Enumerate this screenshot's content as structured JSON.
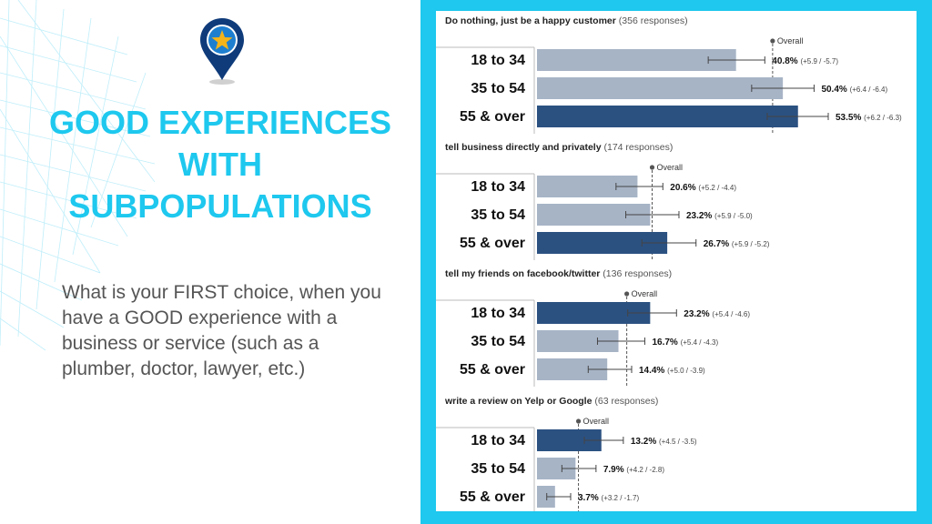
{
  "page": {
    "title": "GOOD EXPERIENCES WITH SUBPOPULATIONS",
    "question": "What is your FIRST choice, when you have a GOOD experience with a business or service (such as a plumber, doctor, lawyer, etc.)",
    "accent_color": "#1ec8ee",
    "logo_icon": "map-pin-star-icon"
  },
  "chart_data": [
    {
      "type": "bar",
      "title": "Do nothing, just be a happy customer",
      "responses": "(356 responses)",
      "overall_label": "Overall",
      "overall": 48.3,
      "categories": [
        "18 to 34",
        "35 to 54",
        "55 & over"
      ],
      "values": [
        40.8,
        50.4,
        53.5
      ],
      "errors": [
        "(+5.9 / -5.7)",
        "(+6.4 / -6.4)",
        "(+6.2 / -6.3)"
      ],
      "err_plus": [
        5.9,
        6.4,
        6.2
      ],
      "err_minus": [
        5.7,
        6.4,
        6.3
      ],
      "highlight": [
        false,
        false,
        true
      ]
    },
    {
      "type": "bar",
      "title": "tell business directly and privately",
      "responses": "(174 responses)",
      "overall_label": "Overall",
      "overall": 23.6,
      "categories": [
        "18 to 34",
        "35 to 54",
        "55 & over"
      ],
      "values": [
        20.6,
        23.2,
        26.7
      ],
      "errors": [
        "(+5.2 / -4.4)",
        "(+5.9 / -5.0)",
        "(+5.9 / -5.2)"
      ],
      "err_plus": [
        5.2,
        5.9,
        5.9
      ],
      "err_minus": [
        4.4,
        5.0,
        5.2
      ],
      "highlight": [
        false,
        false,
        true
      ]
    },
    {
      "type": "bar",
      "title": "tell my friends on facebook/twitter",
      "responses": "(136 responses)",
      "overall_label": "Overall",
      "overall": 18.4,
      "categories": [
        "18 to 34",
        "35 to 54",
        "55 & over"
      ],
      "values": [
        23.2,
        16.7,
        14.4
      ],
      "errors": [
        "(+5.4 / -4.6)",
        "(+5.4 / -4.3)",
        "(+5.0 / -3.9)"
      ],
      "err_plus": [
        5.4,
        5.4,
        5.0
      ],
      "err_minus": [
        4.6,
        4.3,
        3.9
      ],
      "highlight": [
        true,
        false,
        false
      ]
    },
    {
      "type": "bar",
      "title": "write a review on Yelp or Google",
      "responses": "(63 responses)",
      "overall_label": "Overall",
      "overall": 8.5,
      "categories": [
        "18 to 34",
        "35 to 54",
        "55 & over"
      ],
      "values": [
        13.2,
        7.9,
        3.7
      ],
      "errors": [
        "(+4.5 / -3.5)",
        "(+4.2 / -2.8)",
        "(+3.2 / -1.7)"
      ],
      "err_plus": [
        4.5,
        4.2,
        3.2
      ],
      "err_minus": [
        3.5,
        2.8,
        1.7
      ],
      "highlight": [
        true,
        false,
        false
      ]
    }
  ]
}
